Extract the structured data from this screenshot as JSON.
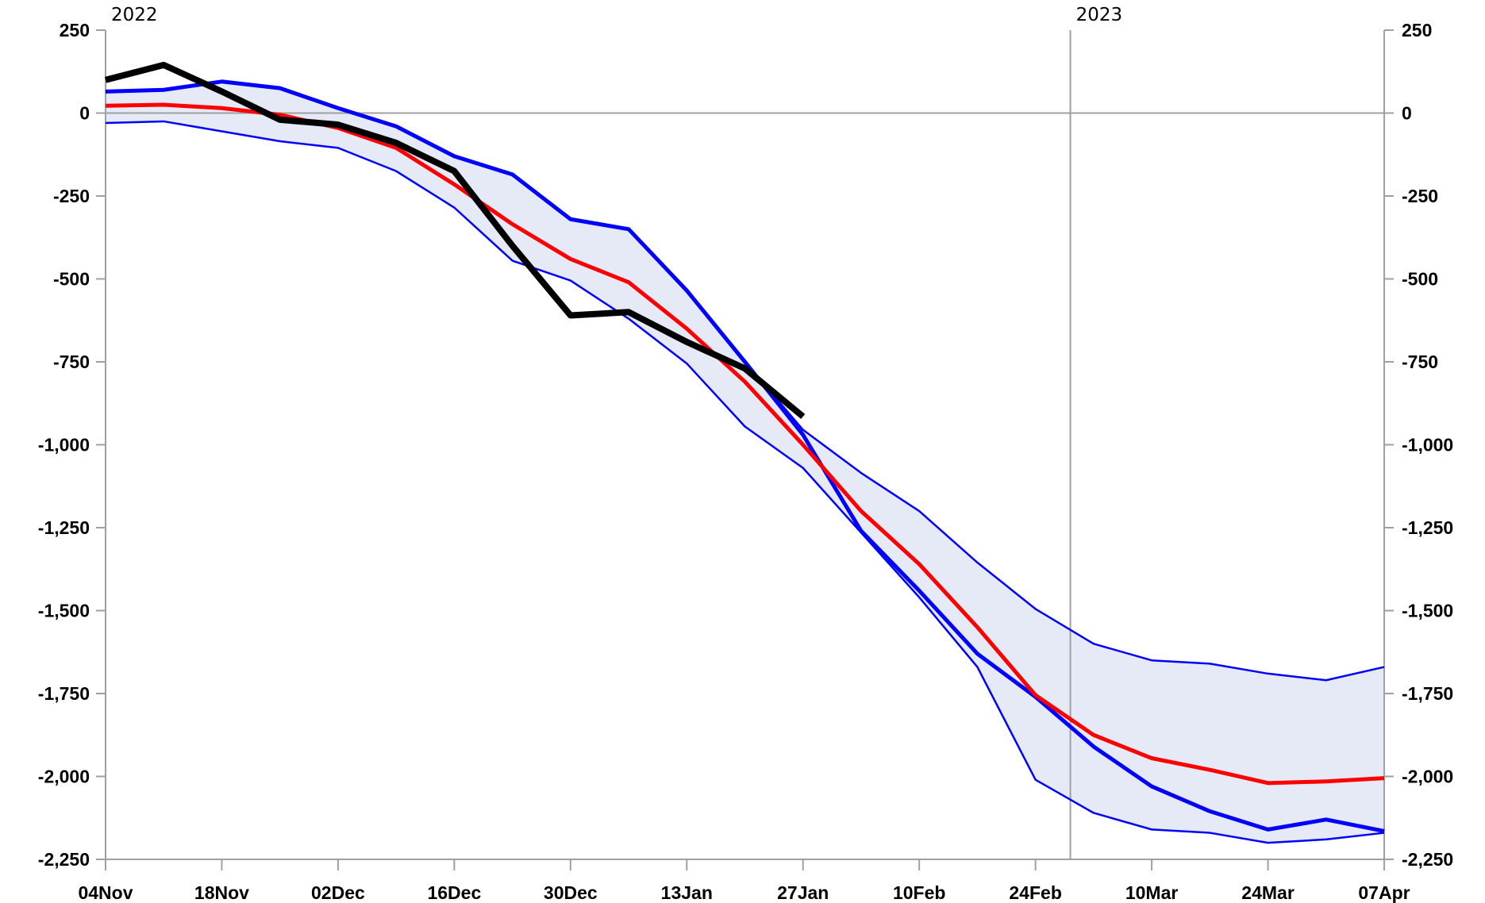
{
  "chart_data": {
    "type": "line",
    "title": "",
    "xlabel": "",
    "ylabel": "",
    "ylim": [
      -2250,
      250
    ],
    "y_ticks": [
      250,
      0,
      -250,
      -500,
      -750,
      -1000,
      -1250,
      -1500,
      -1750,
      -2000,
      -2250
    ],
    "y_tick_labels": [
      "250",
      "0",
      "-250",
      "-500",
      "-750",
      "-1,000",
      "-1,250",
      "-1,500",
      "-1,750",
      "-2,000",
      "-2,250"
    ],
    "x_tick_labels": [
      "04Nov",
      "18Nov",
      "02Dec",
      "16Dec",
      "30Dec",
      "13Jan",
      "27Jan",
      "10Feb",
      "24Feb",
      "10Mar",
      "24Mar",
      "07Apr"
    ],
    "year_labels": [
      {
        "label": "2022",
        "at_week": 0
      },
      {
        "label": "2023",
        "at_week": 8.3
      }
    ],
    "year_boundary_week": 8.3,
    "grid": false,
    "zero_line": true,
    "x_weeks": [
      0,
      1,
      2,
      3,
      4,
      5,
      6,
      7,
      8,
      9,
      10,
      11,
      12,
      13,
      14,
      15,
      16,
      17,
      18,
      19,
      20,
      21,
      22
    ],
    "series": [
      {
        "role": "range-upper",
        "color": "#0000ff",
        "values": [
          65,
          70,
          95,
          75,
          15,
          -40,
          -130,
          -185,
          -320,
          -350,
          -535,
          -750,
          -970,
          -1210,
          -1440,
          -1630,
          -1760,
          -1910,
          -2030,
          -2105,
          -2160,
          -2130,
          -2165
        ]
      },
      {
        "role": "range-lower",
        "color": "#0000ff",
        "values": [
          -30,
          -25,
          -55,
          -85,
          -105,
          -175,
          -285,
          -445,
          -505,
          -620,
          -755,
          -945,
          -1070,
          -1265,
          -1460,
          -1670,
          -2010,
          -2110,
          -2160,
          -2170,
          -2200,
          -2190,
          -2170
        ]
      },
      {
        "role": "range-outer",
        "color": "#0000ff",
        "values": [
          -30,
          -25,
          -55,
          -85,
          -105,
          -175,
          -285,
          -445,
          -505,
          -620,
          -755,
          -945,
          -1070,
          -1260,
          -1440,
          -1630,
          -1760,
          -1910,
          -2030,
          -2105,
          -2160,
          -2130,
          -2165
        ]
      },
      {
        "role": "range-outer-upper",
        "color": "#0000ff",
        "values": [
          65,
          70,
          95,
          75,
          15,
          -40,
          -130,
          -185,
          -320,
          -350,
          -535,
          -750,
          -955,
          -1085,
          -1200,
          -1355,
          -1495,
          -1600,
          -1650,
          -1660,
          -1690,
          -1710,
          -1670
        ]
      },
      {
        "role": "average",
        "color": "#ff0000",
        "values": [
          22,
          25,
          15,
          -5,
          -45,
          -105,
          -215,
          -335,
          -440,
          -510,
          -650,
          -810,
          -1000,
          -1200,
          -1360,
          -1550,
          -1755,
          -1875,
          -1945,
          -1980,
          -2020,
          -2015,
          -2005
        ]
      },
      {
        "role": "current",
        "color": "#000000",
        "values": [
          100,
          145,
          65,
          -20,
          -35,
          -90,
          -175,
          -400,
          -610,
          -600,
          -690,
          -770,
          -915
        ]
      }
    ],
    "band_fill": "#e6e9f6",
    "axis_color": "#a0a0a0"
  }
}
